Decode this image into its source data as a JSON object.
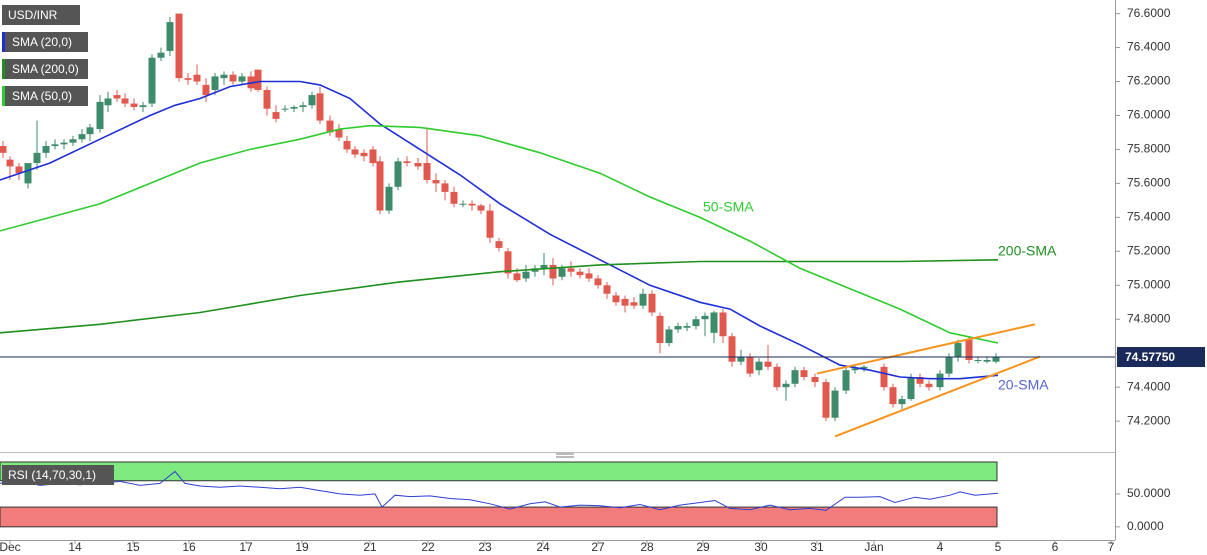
{
  "chart_data": {
    "type": "candlestick",
    "title": "USD/INR",
    "up_color": "#3d8b6a",
    "down_color": "#e0584e",
    "xlim": [
      0,
      111.5
    ],
    "xticks": [
      {
        "value": 1.0,
        "label": "Dec"
      },
      {
        "value": 7.5,
        "label": "14"
      },
      {
        "value": 13.3,
        "label": "15"
      },
      {
        "value": 18.9,
        "label": "16"
      },
      {
        "value": 24.6,
        "label": "17"
      },
      {
        "value": 30.2,
        "label": "19"
      },
      {
        "value": 37.0,
        "label": "21"
      },
      {
        "value": 42.8,
        "label": "22"
      },
      {
        "value": 48.5,
        "label": "23"
      },
      {
        "value": 54.3,
        "label": "24"
      },
      {
        "value": 59.8,
        "label": "27"
      },
      {
        "value": 64.7,
        "label": "28"
      },
      {
        "value": 70.3,
        "label": "29"
      },
      {
        "value": 76.1,
        "label": "30"
      },
      {
        "value": 81.7,
        "label": "31"
      },
      {
        "value": 87.4,
        "label": "Jan"
      },
      {
        "value": 94.0,
        "label": "4"
      },
      {
        "value": 99.8,
        "label": "5"
      },
      {
        "value": 105.5,
        "label": "6"
      },
      {
        "value": 111.1,
        "label": "7"
      }
    ],
    "ylim": [
      74.03,
      76.68
    ],
    "yticks": [
      {
        "value": 74.2,
        "label": "74.2000"
      },
      {
        "value": 74.4,
        "label": "74.4000"
      },
      {
        "value": 74.6,
        "label": "74.6000"
      },
      {
        "value": 74.8,
        "label": "74.8000"
      },
      {
        "value": 75.0,
        "label": "75.0000"
      },
      {
        "value": 75.2,
        "label": "75.2000"
      },
      {
        "value": 75.4,
        "label": "75.4000"
      },
      {
        "value": 75.6,
        "label": "75.6000"
      },
      {
        "value": 75.8,
        "label": "75.8000"
      },
      {
        "value": 76.0,
        "label": "76.0000"
      },
      {
        "value": 76.2,
        "label": "76.2000"
      },
      {
        "value": 76.4,
        "label": "76.4000"
      },
      {
        "value": 76.6,
        "label": "76.6000"
      }
    ],
    "last_price": {
      "value": 74.5775,
      "label": "74.57750"
    },
    "last_price_color": "#1a2a5a",
    "candles": {
      "x": [
        0.3,
        1.0,
        1.9,
        2.8,
        3.7,
        4.6,
        5.5,
        6.4,
        7.3,
        8.2,
        9.0,
        10.0,
        10.8,
        11.7,
        12.5,
        13.4,
        14.3,
        15.2,
        16.1,
        17.0,
        17.9,
        18.8,
        19.7,
        20.6,
        21.5,
        22.4,
        23.3,
        24.2,
        25.1,
        25.8,
        26.7,
        27.6,
        28.5,
        29.4,
        30.3,
        31.2,
        32.0,
        33.0,
        33.9,
        34.7,
        35.5,
        36.4,
        37.3,
        38.0,
        38.9,
        39.8,
        40.7,
        41.8,
        42.7,
        43.6,
        44.5,
        45.4,
        46.3,
        47.2,
        48.1,
        49.0,
        49.9,
        50.8,
        51.7,
        52.6,
        53.5,
        54.4,
        55.3,
        56.2,
        57.1,
        58.0,
        58.9,
        59.8,
        60.7,
        61.6,
        62.5,
        63.4,
        64.3,
        65.2,
        66.0,
        66.9,
        67.8,
        68.7,
        69.6,
        70.5,
        71.4,
        72.3,
        73.2,
        74.1,
        75.0,
        75.9,
        76.8,
        77.7,
        78.6,
        79.5,
        80.4,
        81.5,
        82.6,
        83.5,
        84.6,
        85.5,
        86.4,
        88.4,
        89.3,
        90.2,
        91.1,
        92.0,
        92.9,
        94.0,
        94.9,
        95.8,
        96.9,
        97.8,
        98.7,
        99.6
      ],
      "open": [
        75.82,
        75.74,
        75.7,
        75.6,
        75.72,
        75.78,
        75.82,
        75.83,
        75.84,
        75.86,
        75.89,
        75.92,
        76.06,
        76.12,
        76.1,
        76.07,
        76.05,
        76.07,
        76.34,
        76.38,
        76.6,
        76.22,
        76.24,
        76.18,
        76.15,
        76.22,
        76.24,
        76.2,
        76.23,
        76.27,
        76.15,
        76.02,
        76.04,
        76.04,
        76.05,
        76.06,
        76.13,
        75.97,
        75.92,
        75.85,
        75.8,
        75.78,
        75.8,
        75.73,
        75.44,
        75.58,
        75.73,
        75.72,
        75.72,
        75.62,
        75.6,
        75.55,
        75.48,
        75.48,
        75.47,
        75.44,
        75.26,
        75.2,
        75.07,
        75.04,
        75.08,
        75.1,
        75.12,
        75.05,
        75.1,
        75.08,
        75.07,
        75.04,
        75.0,
        74.94,
        74.92,
        74.9,
        74.88,
        74.95,
        74.82,
        74.66,
        74.74,
        74.75,
        74.76,
        74.8,
        74.72,
        74.84,
        74.7,
        74.55,
        74.58,
        74.5,
        74.55,
        74.52,
        74.4,
        74.42,
        74.5,
        74.46,
        74.43,
        74.22,
        74.38,
        74.5,
        74.51,
        74.52,
        74.4,
        74.3,
        74.33,
        74.46,
        74.42,
        74.4,
        74.48,
        74.58,
        74.68,
        74.56,
        74.55,
        74.55
      ],
      "high": [
        75.85,
        75.76,
        75.72,
        75.72,
        75.97,
        75.85,
        75.86,
        75.86,
        75.88,
        75.92,
        75.95,
        76.12,
        76.14,
        76.15,
        76.13,
        76.1,
        76.08,
        76.36,
        76.4,
        76.58,
        76.6,
        76.25,
        76.3,
        76.22,
        76.25,
        76.26,
        76.26,
        76.25,
        76.26,
        76.27,
        76.17,
        76.06,
        76.06,
        76.06,
        76.08,
        76.14,
        76.17,
        76.0,
        75.95,
        75.88,
        75.82,
        75.8,
        75.82,
        75.76,
        75.6,
        75.75,
        75.76,
        75.75,
        75.93,
        75.66,
        75.62,
        75.58,
        75.5,
        75.5,
        75.48,
        75.48,
        75.28,
        75.22,
        75.1,
        75.12,
        75.12,
        75.19,
        75.16,
        75.12,
        75.14,
        75.1,
        75.1,
        75.06,
        75.02,
        74.96,
        74.94,
        74.93,
        74.98,
        74.97,
        74.84,
        74.76,
        74.78,
        74.78,
        74.82,
        74.84,
        74.85,
        74.86,
        74.72,
        74.62,
        74.6,
        74.57,
        74.65,
        74.54,
        74.44,
        74.52,
        74.52,
        74.48,
        74.45,
        74.4,
        74.52,
        74.53,
        74.53,
        74.54,
        74.42,
        74.35,
        74.48,
        74.48,
        74.44,
        74.5,
        74.6,
        74.68,
        74.7,
        74.58,
        74.58,
        74.6
      ],
      "low": [
        75.75,
        75.62,
        75.62,
        75.57,
        75.68,
        75.75,
        75.8,
        75.8,
        75.82,
        75.84,
        75.85,
        75.9,
        76.02,
        76.08,
        76.05,
        76.03,
        76.02,
        76.05,
        76.32,
        76.35,
        76.2,
        76.18,
        76.18,
        76.08,
        76.12,
        76.18,
        76.18,
        76.18,
        76.14,
        76.14,
        76.0,
        75.96,
        76.02,
        76.02,
        76.02,
        76.04,
        75.95,
        75.88,
        75.85,
        75.78,
        75.75,
        75.73,
        75.7,
        75.42,
        75.42,
        75.56,
        75.7,
        75.68,
        75.6,
        75.55,
        75.5,
        75.46,
        75.46,
        75.44,
        75.42,
        75.25,
        75.2,
        75.04,
        75.02,
        75.02,
        75.05,
        75.06,
        75.0,
        75.03,
        75.05,
        75.04,
        75.02,
        74.98,
        74.92,
        74.88,
        74.84,
        74.86,
        74.86,
        74.82,
        74.6,
        74.64,
        74.72,
        74.73,
        74.74,
        74.7,
        74.66,
        74.66,
        74.52,
        74.53,
        74.46,
        74.47,
        74.5,
        74.38,
        74.32,
        74.4,
        74.44,
        74.4,
        74.2,
        74.2,
        74.36,
        74.48,
        74.49,
        74.38,
        74.28,
        74.27,
        74.32,
        74.4,
        74.38,
        74.38,
        74.46,
        74.55,
        74.54,
        74.54,
        74.54,
        74.54
      ],
      "close": [
        75.78,
        75.7,
        75.66,
        75.72,
        75.78,
        75.82,
        75.83,
        75.84,
        75.86,
        75.89,
        75.93,
        76.08,
        76.1,
        76.1,
        76.07,
        76.05,
        76.06,
        76.34,
        76.37,
        76.55,
        76.22,
        76.21,
        76.2,
        76.12,
        76.23,
        76.24,
        76.2,
        76.23,
        76.16,
        76.15,
        76.04,
        75.98,
        76.04,
        76.05,
        76.06,
        76.12,
        75.97,
        75.9,
        75.87,
        75.8,
        75.77,
        75.76,
        75.72,
        75.44,
        75.58,
        75.73,
        75.72,
        75.7,
        75.62,
        75.6,
        75.55,
        75.48,
        75.48,
        75.47,
        75.44,
        75.28,
        75.22,
        75.07,
        75.03,
        75.08,
        75.1,
        75.12,
        75.04,
        75.1,
        75.08,
        75.06,
        75.04,
        75.0,
        74.95,
        74.9,
        74.88,
        74.88,
        74.95,
        74.84,
        74.66,
        74.74,
        74.76,
        74.76,
        74.8,
        74.82,
        74.84,
        74.7,
        74.55,
        74.58,
        74.48,
        74.55,
        74.52,
        74.4,
        74.42,
        74.5,
        74.46,
        74.43,
        74.22,
        74.38,
        74.5,
        74.51,
        74.52,
        74.4,
        74.3,
        74.33,
        74.46,
        74.42,
        74.4,
        74.48,
        74.58,
        74.66,
        74.56,
        74.56,
        74.56,
        74.58
      ]
    },
    "series": [
      {
        "name": "SMA (20,0)",
        "color": "#1f2fd6",
        "x": [
          0,
          5,
          10,
          15,
          17.5,
          20,
          23,
          26,
          30,
          32,
          35,
          38,
          42,
          46,
          50,
          55,
          60,
          65,
          70,
          73,
          76,
          80,
          84,
          87,
          90,
          93,
          96,
          99.8
        ],
        "values": [
          75.62,
          75.72,
          75.86,
          76.0,
          76.06,
          76.1,
          76.17,
          76.2,
          76.2,
          76.18,
          76.1,
          75.95,
          75.8,
          75.65,
          75.48,
          75.3,
          75.15,
          75.0,
          74.9,
          74.86,
          74.76,
          74.65,
          74.53,
          74.5,
          74.46,
          74.45,
          74.45,
          74.47
        ]
      },
      {
        "name": "SMA (200,0)",
        "color": "#1f8f1f",
        "x": [
          0,
          10,
          20,
          30,
          40,
          50,
          60,
          70,
          80,
          90,
          99.8
        ],
        "values": [
          74.72,
          74.77,
          74.84,
          74.94,
          75.02,
          75.08,
          75.12,
          75.14,
          75.14,
          75.14,
          75.15
        ]
      },
      {
        "name": "SMA (50,0)",
        "color": "#2ecc2e",
        "x": [
          0,
          5,
          10,
          15,
          20,
          25,
          30,
          34,
          37,
          42,
          48,
          54,
          60,
          65,
          70,
          75,
          80,
          85,
          90,
          95,
          99.8
        ],
        "values": [
          75.32,
          75.4,
          75.48,
          75.6,
          75.72,
          75.8,
          75.86,
          75.92,
          75.94,
          75.93,
          75.88,
          75.78,
          75.66,
          75.52,
          75.4,
          75.26,
          75.1,
          74.98,
          74.86,
          74.72,
          74.66
        ]
      }
    ],
    "annotations": [
      "50-SMA",
      "200-SMA",
      "20-SMA"
    ],
    "trendline_color": "#f7931e",
    "trendlines": [
      {
        "x": [
          81.7,
          103.5
        ],
        "y": [
          74.48,
          74.77
        ]
      },
      {
        "x": [
          83.5,
          104.0
        ],
        "y": [
          74.11,
          74.58
        ]
      }
    ],
    "rsi": {
      "title": "RSI (14,70,30,1)",
      "color": "#2f3fd0",
      "upper": 70,
      "lower": 30,
      "upper_color": "#7fea7f",
      "lower_color": "#f27c7c",
      "ylim": [
        -20,
        98.5
      ],
      "yticks": [
        {
          "value": 50,
          "label": "50.0000"
        },
        {
          "value": 0,
          "label": "0.0000"
        }
      ],
      "x": [
        0,
        2,
        4,
        6,
        8,
        10,
        12,
        14,
        16,
        17.5,
        18.5,
        20,
        22,
        24,
        26,
        28,
        30,
        32,
        34,
        36,
        37.5,
        38.2,
        39.5,
        41,
        43,
        45,
        47,
        49,
        51,
        53,
        54.5,
        56,
        58,
        60,
        62,
        64,
        66,
        68,
        70,
        71.5,
        73,
        75,
        77,
        79,
        81,
        82.6,
        84.5,
        86,
        88,
        89.5,
        91.5,
        93,
        95,
        96,
        97.5,
        99.8
      ],
      "values": [
        66,
        70,
        63,
        66,
        64,
        66,
        69,
        63,
        66,
        84,
        66,
        62,
        60,
        62,
        60,
        58,
        60,
        55,
        50,
        48,
        50,
        30,
        48,
        46,
        47,
        43,
        41,
        35,
        27,
        35,
        38,
        30,
        33,
        32,
        29,
        34,
        26,
        33,
        37,
        40,
        28,
        26,
        33,
        26,
        28,
        25,
        45,
        45,
        46,
        37,
        45,
        42,
        48,
        53,
        48,
        51
      ]
    }
  }
}
